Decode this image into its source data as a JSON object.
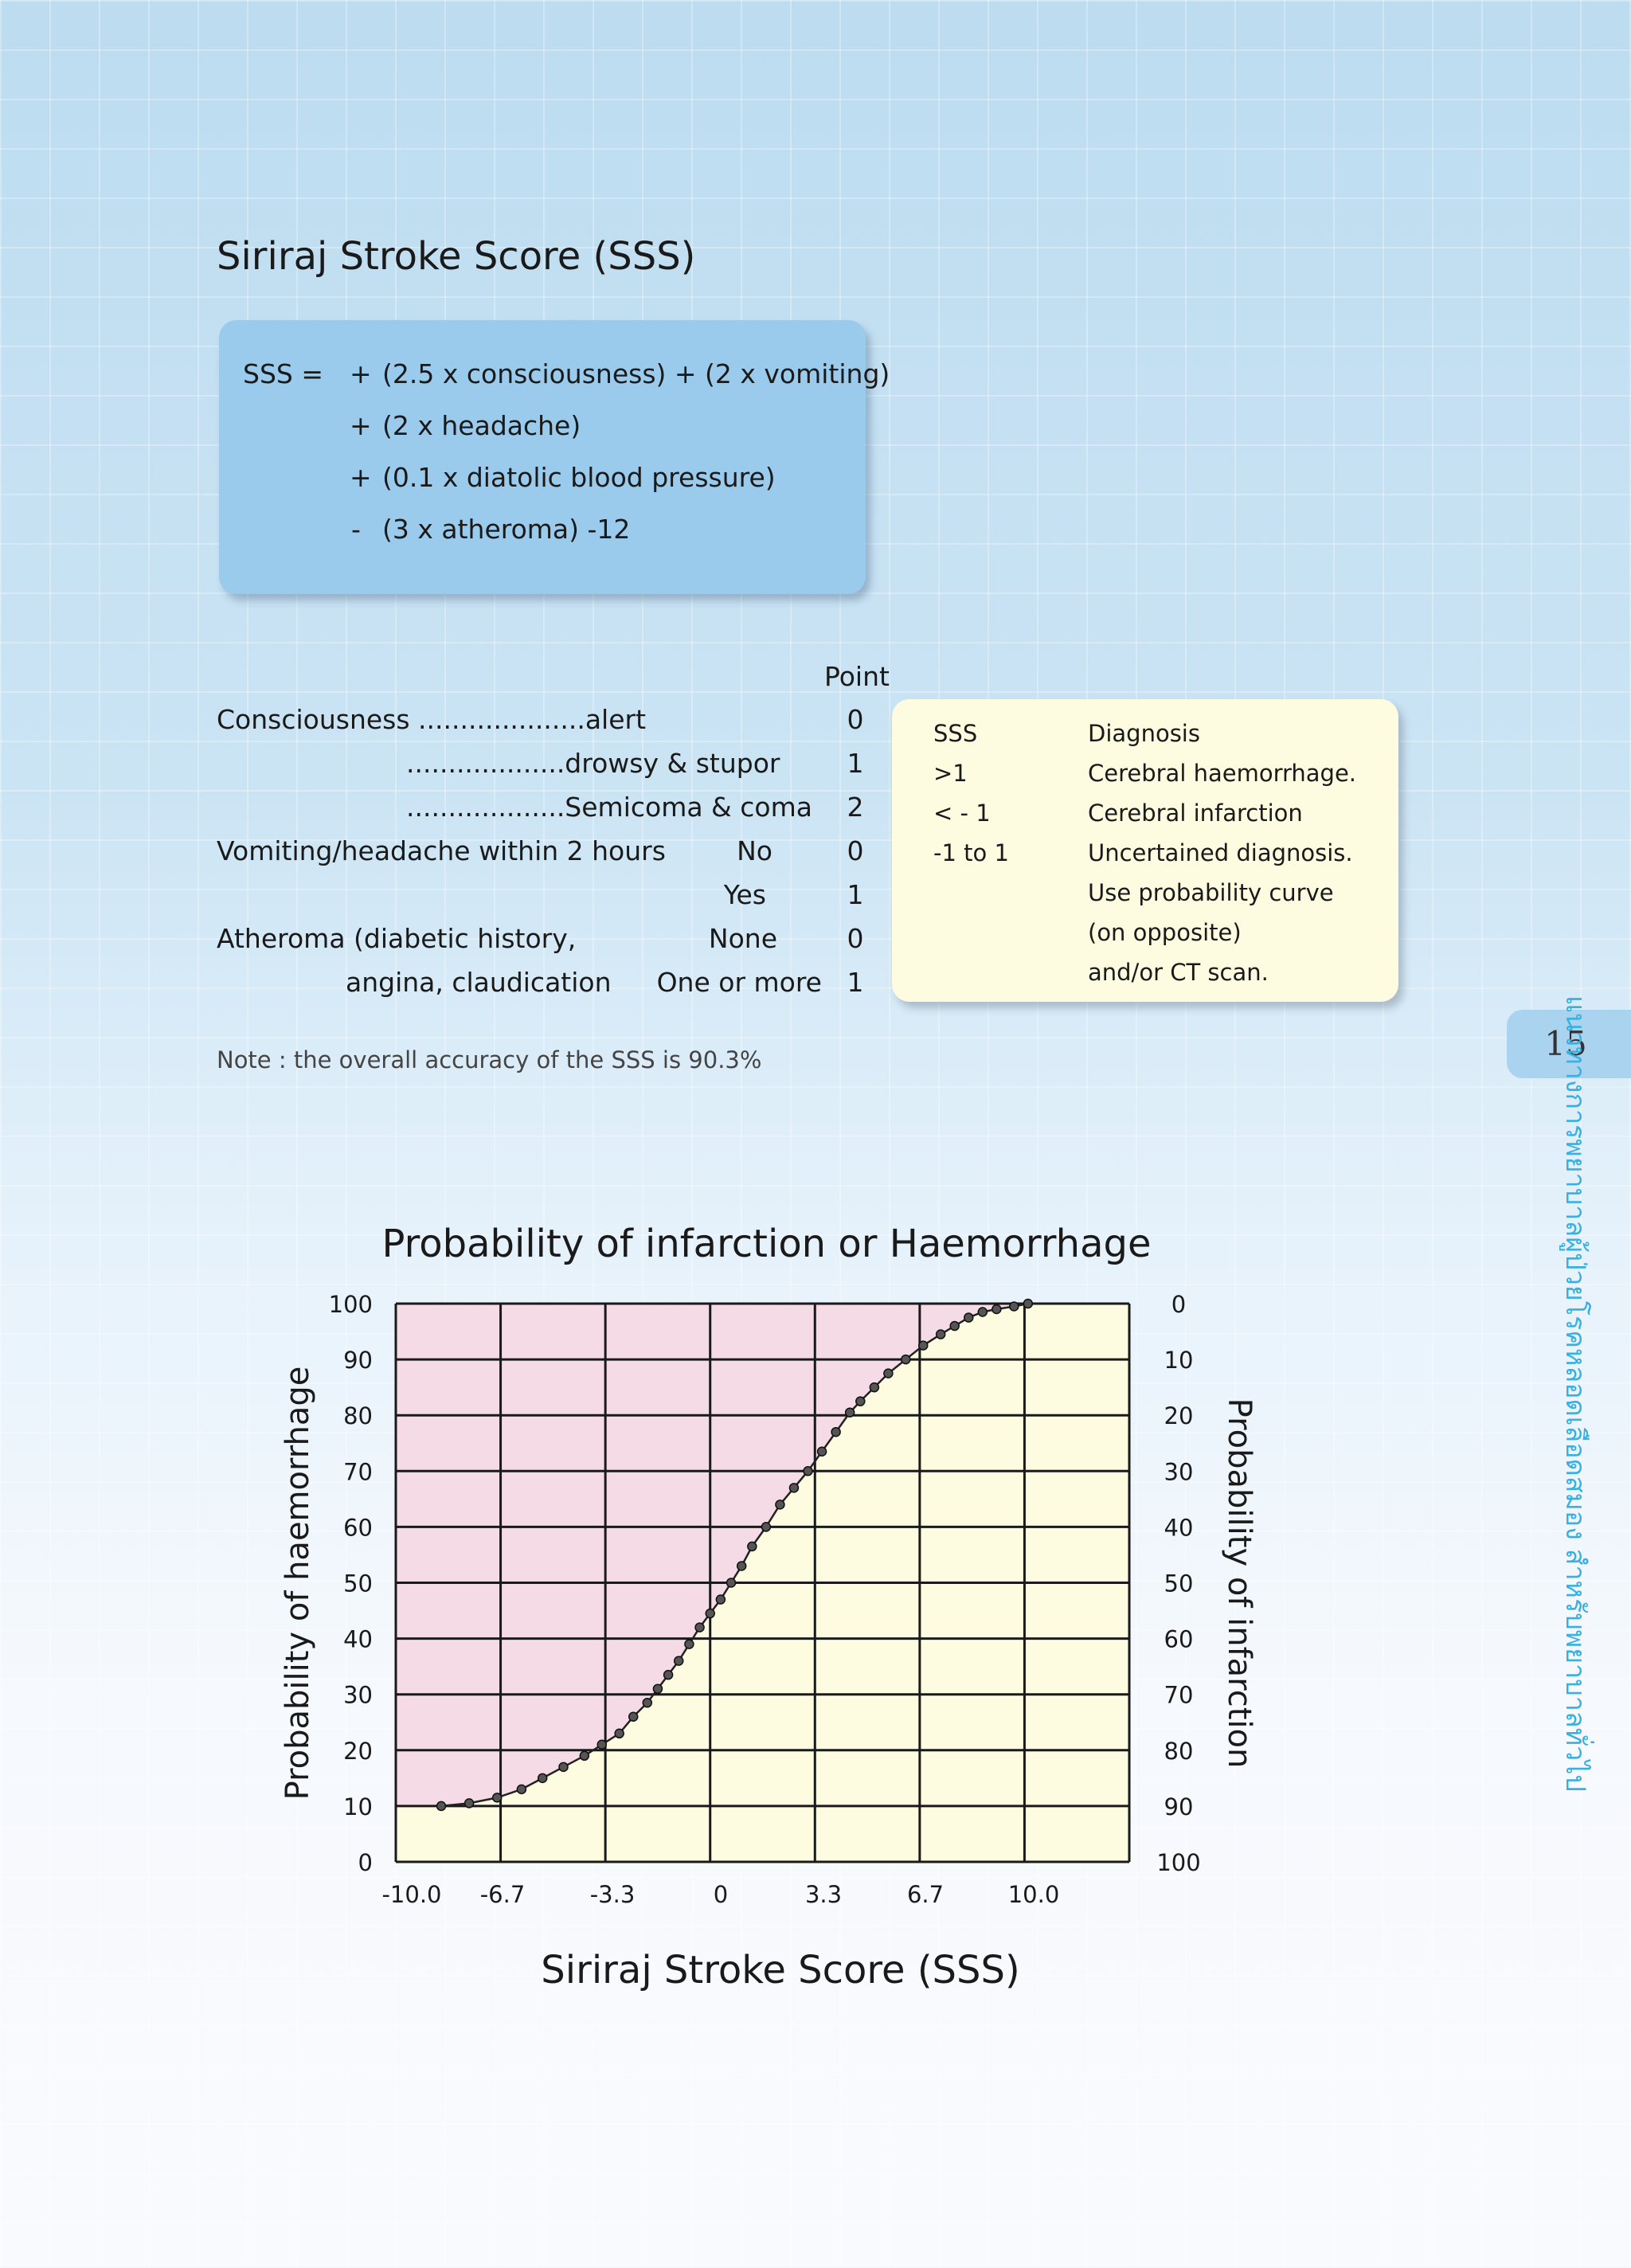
{
  "title": "Siriraj Stroke Score (SSS)",
  "formula": {
    "lead": "SSS =",
    "lines": [
      {
        "sign": "+",
        "text": "(2.5 x consciousness) + (2 x vomiting)"
      },
      {
        "sign": "+",
        "text": "(2 x headache)"
      },
      {
        "sign": "+",
        "text": "(0.1 x diatolic blood pressure)"
      },
      {
        "sign": "-",
        "text": "(3 x atheroma) -12"
      }
    ]
  },
  "criteria": {
    "point_header": "Point",
    "rows": [
      {
        "label": "Consciousness ....................alert",
        "option": "",
        "point": "0"
      },
      {
        "label": "...................drowsy & stupor",
        "option": "",
        "point": "1"
      },
      {
        "label": "...................Semicoma & coma",
        "option": "",
        "point": "2"
      },
      {
        "label": "Vomiting/headache within 2 hours",
        "option": "No",
        "point": "0"
      },
      {
        "label": "",
        "option": "Yes",
        "point": "1"
      },
      {
        "label": "Atheroma (diabetic history,",
        "option": "None",
        "point": "0"
      },
      {
        "label": "angina, claudication",
        "option": "One or more",
        "point": "1"
      }
    ]
  },
  "diagnosis_box": {
    "header_sss": "SSS",
    "header_diagnosis": "Diagnosis",
    "rows": [
      {
        "sss": ">1",
        "diagnosis": "Cerebral haemorrhage."
      },
      {
        "sss": "< - 1",
        "diagnosis": "Cerebral infarction"
      },
      {
        "sss": "-1 to 1",
        "diagnosis": "Uncertained diagnosis."
      },
      {
        "sss": "",
        "diagnosis": "Use probability curve"
      },
      {
        "sss": "",
        "diagnosis": "(on opposite)"
      },
      {
        "sss": "",
        "diagnosis": "and/or CT scan."
      }
    ]
  },
  "note": "Note : the overall accuracy of the SSS is 90.3%",
  "page_number": "15",
  "side_text": "แนวทางการพยาบาลผู้ป่วยโรคหลอดเลือดสมอง สำหรับพยาบาลทั่วไป",
  "colors": {
    "haemorrhage_region": "#f5dbe6",
    "infarction_region": "#fdfbe0",
    "formula_box": "#9bcbec",
    "side_text": "#38b0e0"
  },
  "chart_data": {
    "type": "line",
    "title": "Probability of infarction or Haemorrhage",
    "xlabel": "Siriraj Stroke Score (SSS)",
    "ylabel": "Probability of haemorrhage",
    "ylabel_right": "Probability of infarction",
    "x_tick_labels": [
      "-10.0",
      "-6.7",
      "-3.3",
      "0",
      "3.3",
      "6.7",
      "10.0"
    ],
    "y_tick_labels": [
      "0",
      "10",
      "20",
      "30",
      "40",
      "50",
      "60",
      "70",
      "80",
      "90",
      "100"
    ],
    "y_right_tick_labels": [
      "100",
      "90",
      "80",
      "70",
      "60",
      "50",
      "40",
      "30",
      "20",
      "10",
      "0"
    ],
    "xlim": [
      -10,
      11
    ],
    "ylim": [
      0,
      100
    ],
    "grid": true,
    "series": [
      {
        "values_x": [
          -8.7,
          -7.9,
          -7.1,
          -6.4,
          -5.8,
          -5.2,
          -4.6,
          -4.1,
          -3.6,
          -3.2,
          -2.8,
          -2.5,
          -2.2,
          -1.9,
          -1.6,
          -1.3,
          -1.0,
          -0.7,
          -0.4,
          -0.1,
          0.2,
          0.6,
          1.0,
          1.4,
          1.8,
          2.2,
          2.6,
          3.0,
          3.3,
          3.7,
          4.1,
          4.6,
          5.1,
          5.6,
          6.0,
          6.4,
          6.8,
          7.2,
          7.7,
          8.1
        ],
        "values_y": [
          10,
          10.5,
          11.5,
          13,
          15,
          17,
          19,
          21,
          23,
          26,
          28.5,
          31,
          33.5,
          36,
          39,
          42,
          44.5,
          47,
          50,
          53,
          56.5,
          60,
          64,
          67,
          70,
          73.5,
          77,
          80.5,
          82.5,
          85,
          87.5,
          90,
          92.5,
          94.5,
          96,
          97.5,
          98.5,
          99,
          99.5,
          100
        ]
      }
    ]
  }
}
